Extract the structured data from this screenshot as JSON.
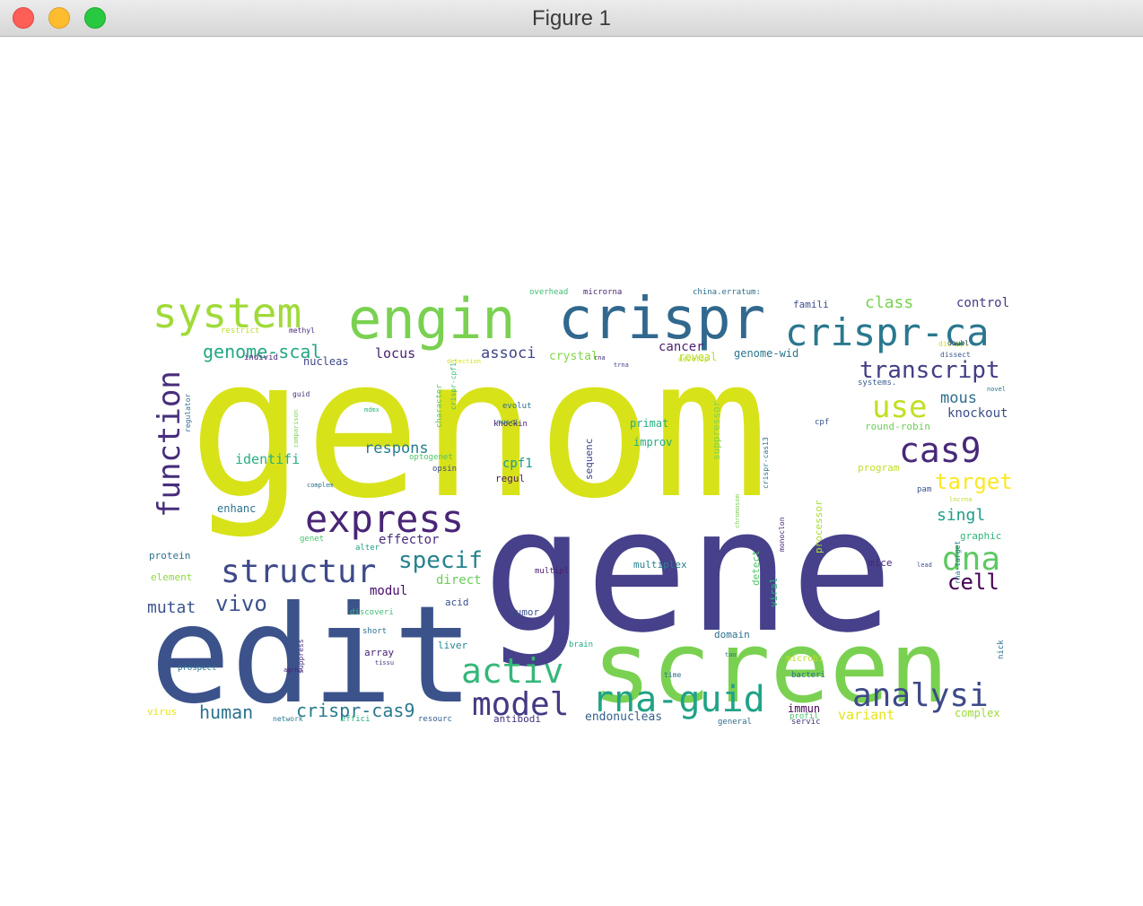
{
  "window": {
    "title": "Figure 1",
    "controls": {
      "close": "close-button",
      "minimize": "minimize-button",
      "maximize": "zoom-button"
    }
  },
  "figure": {
    "palette": {
      "teal": "#21918c",
      "navy": "#3b528b",
      "yellow": "#d8e219",
      "green": "#7ad151",
      "purple": "#472d7b"
    },
    "words": [
      {
        "text": "genom",
        "color": "#d8e219"
      },
      {
        "text": "gene",
        "color": "#46418a"
      },
      {
        "text": "edit",
        "color": "#3b528b"
      },
      {
        "text": "screen",
        "color": "#7ad151"
      },
      {
        "text": "crispr",
        "color": "#31688e"
      },
      {
        "text": "engin",
        "color": "#7ad151"
      },
      {
        "text": "system",
        "color": "#a0da39"
      },
      {
        "text": "crispr-ca",
        "color": "#2a788e"
      },
      {
        "text": "function",
        "color": "#472d7b"
      },
      {
        "text": "express",
        "color": "#482576"
      },
      {
        "text": "structur",
        "color": "#3e4a89"
      },
      {
        "text": "rna-guid",
        "color": "#20a386"
      },
      {
        "text": "model",
        "color": "#443a83"
      },
      {
        "text": "analysi",
        "color": "#3e4989"
      },
      {
        "text": "cas9",
        "color": "#482878"
      },
      {
        "text": "dna",
        "color": "#5ec962"
      },
      {
        "text": "activ",
        "color": "#35b779"
      },
      {
        "text": "use",
        "color": "#c2df23"
      },
      {
        "text": "transcript",
        "color": "#433e85"
      },
      {
        "text": "specif",
        "color": "#26828e"
      },
      {
        "text": "target",
        "color": "#fde725"
      },
      {
        "text": "genome-scal",
        "color": "#22a884"
      },
      {
        "text": "vivo",
        "color": "#3b528b"
      },
      {
        "text": "cell",
        "color": "#440154"
      },
      {
        "text": "human",
        "color": "#2c728e"
      },
      {
        "text": "crispr-cas9",
        "color": "#2a788e"
      },
      {
        "text": "mutat",
        "color": "#3a548c"
      },
      {
        "text": "class",
        "color": "#7ad151"
      },
      {
        "text": "associ",
        "color": "#414487"
      },
      {
        "text": "singl",
        "color": "#1f9e89"
      },
      {
        "text": "mous",
        "color": "#2e6e8e"
      },
      {
        "text": "respons",
        "color": "#287d8e"
      },
      {
        "text": "locus",
        "color": "#482475"
      },
      {
        "text": "control",
        "color": "#443983"
      },
      {
        "text": "cancer",
        "color": "#481f70"
      },
      {
        "text": "knockout",
        "color": "#3d4d8a"
      },
      {
        "text": "identifi",
        "color": "#29af7f"
      },
      {
        "text": "crystal",
        "color": "#86d549"
      },
      {
        "text": "cpf1",
        "color": "#1f9a8a"
      },
      {
        "text": "effector",
        "color": "#472c7a"
      },
      {
        "text": "endonucleas",
        "color": "#355f8d"
      },
      {
        "text": "variant",
        "color": "#e5e419"
      },
      {
        "text": "direct",
        "color": "#6ccd5a"
      },
      {
        "text": "modul",
        "color": "#450a69"
      },
      {
        "text": "genome-wid",
        "color": "#2a768e"
      },
      {
        "text": "improv",
        "color": "#25ac82"
      },
      {
        "text": "primat",
        "color": "#26ad81"
      },
      {
        "text": "enhanc",
        "color": "#2c738e"
      },
      {
        "text": "nucleas",
        "color": "#404588"
      },
      {
        "text": "reveal",
        "color": "#b5de2b"
      },
      {
        "text": "famili",
        "color": "#3e4c8a"
      },
      {
        "text": "round-robin",
        "color": "#6ece58"
      },
      {
        "text": "program",
        "color": "#bddf26"
      },
      {
        "text": "protein",
        "color": "#2d708e"
      },
      {
        "text": "element",
        "color": "#90d743"
      },
      {
        "text": "domain",
        "color": "#2c718e"
      },
      {
        "text": "tumor",
        "color": "#3c508b"
      },
      {
        "text": "liver",
        "color": "#24878e"
      },
      {
        "text": "array",
        "color": "#482173"
      },
      {
        "text": "acid",
        "color": "#3b528b"
      },
      {
        "text": "multiplex",
        "color": "#277f8e"
      },
      {
        "text": "immun",
        "color": "#440154"
      },
      {
        "text": "complex",
        "color": "#9fda3a"
      },
      {
        "text": "antibodi",
        "color": "#46327e"
      },
      {
        "text": "virus",
        "color": "#e7e419"
      },
      {
        "text": "mice",
        "color": "#482677"
      },
      {
        "text": "graphic",
        "color": "#31b57b"
      },
      {
        "text": "detect",
        "color": "#52c569"
      },
      {
        "text": "viral",
        "color": "#2db27d"
      },
      {
        "text": "processor",
        "color": "#a8db34"
      },
      {
        "text": "suppressor",
        "color": "#7fd34e"
      },
      {
        "text": "sequenc",
        "color": "#3f4788"
      },
      {
        "text": "regul",
        "color": "#48196b"
      },
      {
        "text": "cpf",
        "color": "#39568c"
      },
      {
        "text": "pam",
        "color": "#3a548c"
      },
      {
        "text": "systems.",
        "color": "#365c8d"
      },
      {
        "text": "evolut",
        "color": "#2e6f8e"
      },
      {
        "text": "knockin",
        "color": "#482071"
      },
      {
        "text": "opsin",
        "color": "#3e4a89"
      },
      {
        "text": "optogenet",
        "color": "#4ec36b"
      },
      {
        "text": "brain",
        "color": "#22a785"
      },
      {
        "text": "time",
        "color": "#2e6d8e"
      },
      {
        "text": "short",
        "color": "#2d708e"
      },
      {
        "text": "discoveri",
        "color": "#3dbc74"
      },
      {
        "text": "genet",
        "color": "#48c16e"
      },
      {
        "text": "alter",
        "color": "#1fa088"
      },
      {
        "text": "multipl",
        "color": "#481c6e"
      },
      {
        "text": "microbi",
        "color": "#b8de29"
      },
      {
        "text": "bacteri",
        "color": "#2c718e"
      },
      {
        "text": "profil",
        "color": "#4ac16d"
      },
      {
        "text": "general",
        "color": "#2e6e8e"
      },
      {
        "text": "servic",
        "color": "#46327e"
      },
      {
        "text": "network",
        "color": "#2a778e"
      },
      {
        "text": "effici",
        "color": "#2ab07f"
      },
      {
        "text": "resourc",
        "color": "#34608d"
      },
      {
        "text": "prospect",
        "color": "#2c728e"
      },
      {
        "text": "suppress",
        "color": "#46337f"
      },
      {
        "text": "overhead",
        "color": "#3fbc73"
      },
      {
        "text": "microrna",
        "color": "#482475"
      },
      {
        "text": "china.erratum:",
        "color": "#2e6e8e"
      },
      {
        "text": "restrict",
        "color": "#bade28"
      },
      {
        "text": "methyl",
        "color": "#482979"
      },
      {
        "text": "individ",
        "color": "#482475"
      },
      {
        "text": "detection",
        "color": "#d5e21a"
      },
      {
        "text": "develop",
        "color": "#c0df25"
      },
      {
        "text": "disrupt",
        "color": "#d2e21b"
      },
      {
        "text": "doubl",
        "color": "#39558c"
      },
      {
        "text": "dissect",
        "color": "#38588c"
      },
      {
        "text": "guid",
        "color": "#472e7c"
      },
      {
        "text": "comparison",
        "color": "#7ad151"
      },
      {
        "text": "mdmx",
        "color": "#31b57b"
      },
      {
        "text": "musci",
        "color": "#2d718e"
      },
      {
        "text": "crispr-cpf1.",
        "color": "#3dbc74"
      },
      {
        "text": "character",
        "color": "#5cc863"
      },
      {
        "text": "regulator",
        "color": "#2e6e8e"
      },
      {
        "text": "crispr-cas13",
        "color": "#2d708e"
      },
      {
        "text": "chromosom",
        "color": "#7ad151"
      },
      {
        "text": "monoclon",
        "color": "#482878"
      },
      {
        "text": "rna-target",
        "color": "#2a768e"
      },
      {
        "text": "nick",
        "color": "#2c718e"
      },
      {
        "text": "tao",
        "color": "#2e6f8e"
      },
      {
        "text": "lead",
        "color": "#3b528b"
      },
      {
        "text": "lncrna",
        "color": "#b8de29"
      },
      {
        "text": "novel",
        "color": "#2c728e"
      },
      {
        "text": "agrna",
        "color": "#482475"
      },
      {
        "text": "complem",
        "color": "#2e6f8e"
      },
      {
        "text": "tissu",
        "color": "#46337f"
      },
      {
        "text": "rna",
        "color": "#46337f"
      },
      {
        "text": "trna",
        "color": "#414487"
      }
    ]
  }
}
